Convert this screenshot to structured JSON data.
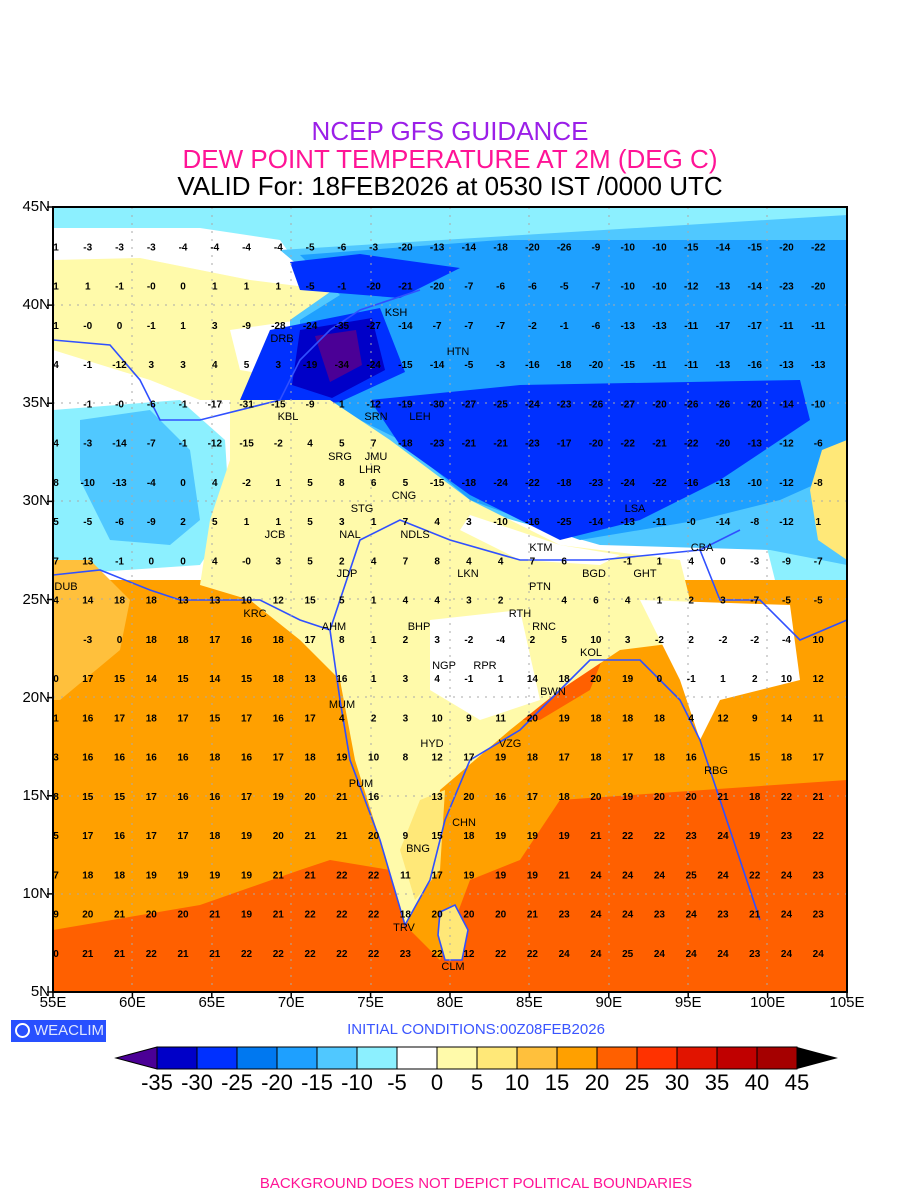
{
  "header": {
    "line1": "NCEP GFS GUIDANCE",
    "line2": "DEW POINT TEMPERATURE AT 2M (DEG C)",
    "line3": "VALID For: 18FEB2026 at 0530 IST /0000 UTC"
  },
  "axes": {
    "lat_labels": [
      "45N",
      "40N",
      "35N",
      "30N",
      "25N",
      "20N",
      "15N",
      "10N",
      "5N"
    ],
    "lon_labels": [
      "55E",
      "60E",
      "65E",
      "70E",
      "75E",
      "80E",
      "85E",
      "90E",
      "95E",
      "100E",
      "105E"
    ]
  },
  "colors": {
    "levels": [
      "#4b0096",
      "#0000c8",
      "#0030ff",
      "#0078f0",
      "#1ea0ff",
      "#50c8ff",
      "#8cf0ff",
      "#ffffff",
      "#fffaaa",
      "#ffe878",
      "#ffc03c",
      "#ffa000",
      "#ff6000",
      "#ff3200",
      "#e11400",
      "#c00000",
      "#a50000",
      "#000000"
    ],
    "boundary": "#3050ff"
  },
  "colorbar": {
    "labels": [
      "-35",
      "-30",
      "-25",
      "-20",
      "-15",
      "-10",
      "-5",
      "0",
      "5",
      "10",
      "15",
      "20",
      "25",
      "30",
      "35",
      "40",
      "45"
    ]
  },
  "stations": [
    "KSH",
    "DRB",
    "HTN",
    "KBL",
    "SRN",
    "LEH",
    "JMU",
    "SRG",
    "LHR",
    "CNG",
    "STG",
    "NAL",
    "JCB",
    "NDLS",
    "JDP",
    "LKN",
    "KTM",
    "PTN",
    "BGD",
    "GHT",
    "LSA",
    "CBA",
    "DUB",
    "KRC",
    "RTH",
    "AHM",
    "BHP",
    "RNC",
    "KOL",
    "NGP",
    "RPR",
    "BWN",
    "MUM",
    "HYD",
    "VZG",
    "RBG",
    "PUM",
    "CHN",
    "BNG",
    "TRV",
    "CLM"
  ],
  "chart_data": {
    "type": "heatmap",
    "title": "DEW POINT TEMPERATURE AT 2M (DEG C)",
    "units": "deg C",
    "xlim": [
      55,
      105
    ],
    "ylim": [
      5,
      45
    ],
    "grid": true,
    "grid_lons": [
      55,
      57,
      59,
      61,
      63,
      65,
      67,
      69,
      71,
      73,
      75,
      77,
      79,
      81,
      83,
      85,
      87,
      89,
      91,
      93,
      95,
      97,
      99,
      101,
      103
    ],
    "grid_values": [
      {
        "lat": 43,
        "v": [
          "1",
          "-3",
          "-3",
          "-3",
          "-4",
          "-4",
          "-4",
          "-4",
          "-5",
          "-6",
          "-3",
          "-20",
          "-13",
          "-14",
          "-18",
          "-20",
          "-26",
          "-9",
          "-10",
          "-10",
          "-15",
          "-14",
          "-15",
          "-20",
          "-22"
        ]
      },
      {
        "lat": 41,
        "v": [
          "1",
          "1",
          "-1",
          "-0",
          "0",
          "1",
          "1",
          "1",
          "-5",
          "-1",
          "-20",
          "-21",
          "-20",
          "-7",
          "-6",
          "-6",
          "-5",
          "-7",
          "-10",
          "-10",
          "-12",
          "-13",
          "-14",
          "-23",
          "-20"
        ]
      },
      {
        "lat": 39,
        "v": [
          "1",
          "-0",
          "0",
          "-1",
          "1",
          "3",
          "-9",
          "-28",
          "-24",
          "-35",
          "-27",
          "-14",
          "-7",
          "-7",
          "-7",
          "-2",
          "-1",
          "-6",
          "-13",
          "-13",
          "-11",
          "-17",
          "-17",
          "-11",
          "-11"
        ]
      },
      {
        "lat": 37,
        "v": [
          "4",
          "-1",
          "-12",
          "3",
          "3",
          "4",
          "5",
          "3",
          "-19",
          "-34",
          "-24",
          "-15",
          "-14",
          "-5",
          "-3",
          "-16",
          "-18",
          "-20",
          "-15",
          "-11",
          "-11",
          "-13",
          "-16",
          "-13",
          "-13"
        ]
      },
      {
        "lat": 35,
        "v": [
          null,
          "-1",
          "-0",
          "-6",
          "-1",
          "-17",
          "-31",
          "-15",
          "-9",
          "1",
          "-12",
          "-19",
          "-30",
          "-27",
          "-25",
          "-24",
          "-23",
          "-26",
          "-27",
          "-20",
          "-26",
          "-26",
          "-20",
          "-14",
          "-10"
        ]
      },
      {
        "lat": 33,
        "v": [
          "4",
          "-3",
          "-14",
          "-7",
          "-1",
          "-12",
          "-15",
          "-2",
          "4",
          "5",
          "7",
          "-18",
          "-23",
          "-21",
          "-21",
          "-23",
          "-17",
          "-20",
          "-22",
          "-21",
          "-22",
          "-20",
          "-13",
          "-12",
          "-6"
        ]
      },
      {
        "lat": 31,
        "v": [
          "8",
          "-10",
          "-13",
          "-4",
          "0",
          "4",
          "-2",
          "1",
          "5",
          "8",
          "6",
          "5",
          "-15",
          "-18",
          "-24",
          "-22",
          "-18",
          "-23",
          "-24",
          "-22",
          "-16",
          "-13",
          "-10",
          "-12",
          "-8"
        ]
      },
      {
        "lat": 29,
        "v": [
          "5",
          "-5",
          "-6",
          "-9",
          "2",
          "5",
          "1",
          "1",
          "5",
          "3",
          "1",
          "7",
          "4",
          "3",
          "-10",
          "-16",
          "-25",
          "-14",
          "-13",
          "-11",
          "-0",
          "-14",
          "-8",
          "-12",
          "1"
        ]
      },
      {
        "lat": 27,
        "v": [
          "7",
          "13",
          "-1",
          "0",
          "0",
          "4",
          "-0",
          "3",
          "5",
          "2",
          "4",
          "7",
          "8",
          "4",
          "4",
          "7",
          "6",
          null,
          "-1",
          "1",
          "4",
          "0",
          "-3",
          "-9",
          "-7"
        ]
      },
      {
        "lat": 25,
        "v": [
          "4",
          "14",
          "18",
          "18",
          "13",
          "13",
          "10",
          "12",
          "15",
          "5",
          "1",
          "4",
          "4",
          "3",
          "2",
          null,
          "4",
          "6",
          "4",
          "1",
          "2",
          "3",
          "-7",
          "-5",
          "-5"
        ]
      },
      {
        "lat": 23,
        "v": [
          null,
          "-3",
          "0",
          "18",
          "18",
          "17",
          "16",
          "18",
          "17",
          "8",
          "1",
          "2",
          "3",
          "-2",
          "-4",
          "2",
          "5",
          "10",
          "3",
          "-2",
          "2",
          "-2",
          "-2",
          "-4",
          "10"
        ]
      },
      {
        "lat": 21,
        "v": [
          "0",
          "17",
          "15",
          "14",
          "15",
          "14",
          "15",
          "18",
          "13",
          "16",
          "1",
          "3",
          "4",
          "-1",
          "1",
          "14",
          "18",
          "20",
          "19",
          "0",
          "-1",
          "1",
          "2",
          "10",
          "12"
        ]
      },
      {
        "lat": 19,
        "v": [
          "1",
          "16",
          "17",
          "18",
          "17",
          "15",
          "17",
          "16",
          "17",
          "4",
          "2",
          "3",
          "10",
          "9",
          "11",
          "20",
          "19",
          "18",
          "18",
          "18",
          "4",
          "12",
          "9",
          "14",
          "11"
        ]
      },
      {
        "lat": 17,
        "v": [
          "3",
          "16",
          "16",
          "16",
          "16",
          "18",
          "16",
          "17",
          "18",
          "19",
          "10",
          "8",
          "12",
          "17",
          "19",
          "18",
          "17",
          "18",
          "17",
          "18",
          "16",
          null,
          "15",
          "18",
          "17"
        ]
      },
      {
        "lat": 15,
        "v": [
          "8",
          "15",
          "15",
          "17",
          "16",
          "16",
          "17",
          "19",
          "20",
          "21",
          "16",
          null,
          "13",
          "20",
          "16",
          "17",
          "18",
          "20",
          "19",
          "20",
          "20",
          "21",
          "18",
          "22",
          "21"
        ]
      },
      {
        "lat": 13,
        "v": [
          "5",
          "17",
          "16",
          "17",
          "17",
          "18",
          "19",
          "20",
          "21",
          "21",
          "20",
          "9",
          "15",
          "18",
          "19",
          "19",
          "19",
          "21",
          "22",
          "22",
          "23",
          "24",
          "19",
          "23",
          "22"
        ]
      },
      {
        "lat": 11,
        "v": [
          "7",
          "18",
          "18",
          "19",
          "19",
          "19",
          "19",
          "21",
          "21",
          "22",
          "22",
          "11",
          "17",
          "19",
          "19",
          "19",
          "21",
          "24",
          "24",
          "24",
          "25",
          "24",
          "22",
          "24",
          "23"
        ]
      },
      {
        "lat": 9,
        "v": [
          "9",
          "20",
          "21",
          "20",
          "20",
          "21",
          "19",
          "21",
          "22",
          "22",
          "22",
          "18",
          "20",
          "20",
          "20",
          "21",
          "23",
          "24",
          "24",
          "23",
          "24",
          "23",
          "21",
          "24",
          "23"
        ]
      },
      {
        "lat": 7,
        "v": [
          "0",
          "21",
          "21",
          "22",
          "21",
          "21",
          "22",
          "22",
          "22",
          "22",
          "22",
          "23",
          "22",
          "12",
          "22",
          "22",
          "24",
          "24",
          "25",
          "24",
          "24",
          "24",
          "23",
          "24",
          "24"
        ]
      }
    ]
  },
  "footer": {
    "logo_text": "WEACLIM",
    "initial_conditions": "INITIAL CONDITIONS:00Z08FEB2026",
    "disclaimer": "BACKGROUND DOES NOT DEPICT POLITICAL BOUNDARIES"
  }
}
